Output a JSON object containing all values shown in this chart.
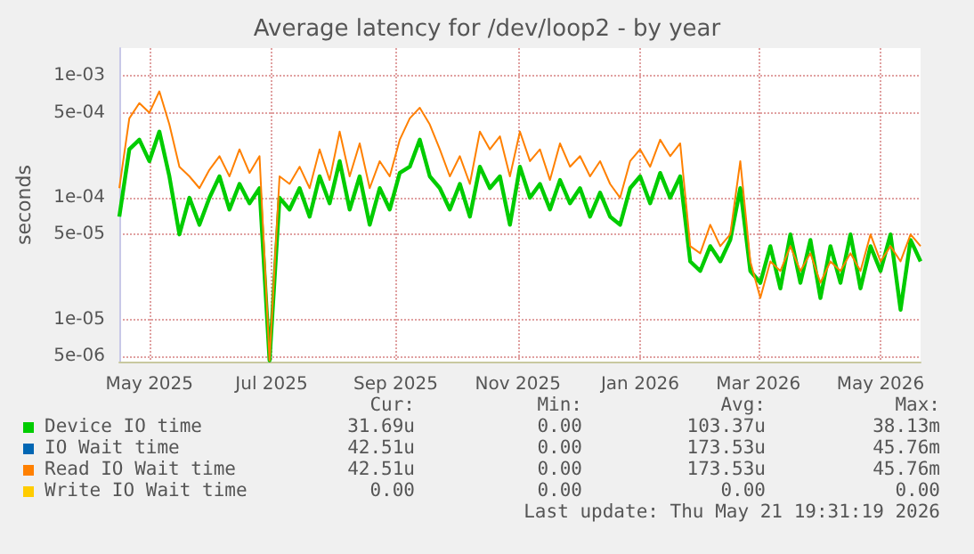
{
  "chart_data": {
    "type": "line",
    "title": "Average latency for /dev/loop2 - by year",
    "ylabel": "seconds",
    "log": "y",
    "grid": true,
    "legend": "bottom",
    "marker": "none",
    "xlim": [
      "2025-04-16",
      "2026-05-21"
    ],
    "xticks": [
      {
        "value": "2025-05-01",
        "label": "May 2025"
      },
      {
        "value": "2025-07-01",
        "label": "Jul 2025"
      },
      {
        "value": "2025-09-01",
        "label": "Sep 2025"
      },
      {
        "value": "2025-11-01",
        "label": "Nov 2025"
      },
      {
        "value": "2026-01-01",
        "label": "Jan 2026"
      },
      {
        "value": "2026-03-01",
        "label": "Mar 2026"
      },
      {
        "value": "2026-05-01",
        "label": "May 2026"
      }
    ],
    "ylim": [
      4.5e-06,
      0.0017
    ],
    "yticks": [
      {
        "value": 5e-06,
        "label": "5e-06"
      },
      {
        "value": 1e-05,
        "label": "1e-05"
      },
      {
        "value": 5e-05,
        "label": "5e-05"
      },
      {
        "value": 0.0001,
        "label": "1e-04"
      },
      {
        "value": 0.0005,
        "label": "5e-04"
      },
      {
        "value": 0.001,
        "label": "1e-03"
      }
    ],
    "x": [
      "2025-04-16",
      "2025-04-21",
      "2025-04-26",
      "2025-05-01",
      "2025-05-06",
      "2025-05-11",
      "2025-05-16",
      "2025-05-21",
      "2025-05-26",
      "2025-05-31",
      "2025-06-05",
      "2025-06-10",
      "2025-06-15",
      "2025-06-20",
      "2025-06-25",
      "2025-06-30",
      "2025-07-05",
      "2025-07-10",
      "2025-07-15",
      "2025-07-20",
      "2025-07-25",
      "2025-07-30",
      "2025-08-04",
      "2025-08-09",
      "2025-08-14",
      "2025-08-19",
      "2025-08-24",
      "2025-08-29",
      "2025-09-03",
      "2025-09-08",
      "2025-09-13",
      "2025-09-18",
      "2025-09-23",
      "2025-09-28",
      "2025-10-03",
      "2025-10-08",
      "2025-10-13",
      "2025-10-18",
      "2025-10-23",
      "2025-10-28",
      "2025-11-02",
      "2025-11-07",
      "2025-11-12",
      "2025-11-17",
      "2025-11-22",
      "2025-11-27",
      "2025-12-02",
      "2025-12-07",
      "2025-12-12",
      "2025-12-17",
      "2025-12-22",
      "2025-12-27",
      "2026-01-01",
      "2026-01-06",
      "2026-01-11",
      "2026-01-16",
      "2026-01-21",
      "2026-01-26",
      "2026-01-31",
      "2026-02-05",
      "2026-02-10",
      "2026-02-15",
      "2026-02-20",
      "2026-02-25",
      "2026-03-02",
      "2026-03-07",
      "2026-03-12",
      "2026-03-17",
      "2026-03-22",
      "2026-03-27",
      "2026-04-01",
      "2026-04-06",
      "2026-04-11",
      "2026-04-16",
      "2026-04-21",
      "2026-04-26",
      "2026-05-01",
      "2026-05-06",
      "2026-05-11",
      "2026-05-16",
      "2026-05-21"
    ],
    "series": [
      {
        "name": "Device IO time",
        "color": "#00cc00",
        "values": [
          7e-05,
          0.00025,
          0.0003,
          0.0002,
          0.00035,
          0.00015,
          5e-05,
          0.0001,
          6e-05,
          0.0001,
          0.00015,
          8e-05,
          0.00013,
          9e-05,
          0.00012,
          4.6e-06,
          0.0001,
          8e-05,
          0.00012,
          7e-05,
          0.00015,
          9e-05,
          0.0002,
          8e-05,
          0.00015,
          6e-05,
          0.00012,
          8e-05,
          0.00016,
          0.00018,
          0.0003,
          0.00015,
          0.00012,
          8e-05,
          0.00013,
          7e-05,
          0.00018,
          0.00012,
          0.00015,
          6e-05,
          0.00018,
          0.0001,
          0.00013,
          8e-05,
          0.00014,
          9e-05,
          0.00012,
          7e-05,
          0.00011,
          7e-05,
          6e-05,
          0.00012,
          0.00015,
          9e-05,
          0.00016,
          0.0001,
          0.00015,
          3e-05,
          2.5e-05,
          4e-05,
          3e-05,
          4.5e-05,
          0.00012,
          2.5e-05,
          2e-05,
          4e-05,
          1.8e-05,
          5e-05,
          2e-05,
          4.5e-05,
          1.5e-05,
          4e-05,
          2e-05,
          5e-05,
          1.8e-05,
          4e-05,
          2.5e-05,
          5e-05,
          1.2e-05,
          4.5e-05,
          3e-05
        ]
      },
      {
        "name": "IO Wait time",
        "color": "#0066b3",
        "values": [
          null,
          null,
          null,
          null,
          null,
          null,
          null,
          null,
          null,
          null,
          null,
          null,
          null,
          null,
          null,
          null,
          null,
          null,
          null,
          null,
          null,
          null,
          null,
          null,
          null,
          null,
          null,
          null,
          null,
          null,
          null,
          null,
          null,
          null,
          null,
          null,
          null,
          null,
          null,
          null,
          null,
          null,
          null,
          null,
          null,
          null,
          null,
          null,
          null,
          null,
          null,
          null,
          null,
          null,
          null,
          null,
          null,
          null,
          null,
          null,
          null,
          null,
          null,
          null,
          null,
          null,
          null,
          null,
          null,
          null,
          null,
          null,
          null,
          null,
          null,
          null,
          null,
          null,
          null,
          null,
          null
        ]
      },
      {
        "name": "Read IO Wait time",
        "color": "#ff8000",
        "values": [
          0.00012,
          0.00045,
          0.0006,
          0.0005,
          0.00075,
          0.0004,
          0.00018,
          0.00015,
          0.00012,
          0.00017,
          0.00022,
          0.00015,
          0.00025,
          0.00016,
          0.00022,
          4.6e-06,
          0.00015,
          0.00013,
          0.00018,
          0.00012,
          0.00025,
          0.00014,
          0.00035,
          0.00015,
          0.00028,
          0.00012,
          0.0002,
          0.00015,
          0.0003,
          0.00045,
          0.00055,
          0.0004,
          0.00025,
          0.00015,
          0.00022,
          0.00013,
          0.00035,
          0.00025,
          0.00032,
          0.00015,
          0.00035,
          0.0002,
          0.00025,
          0.00014,
          0.00028,
          0.00018,
          0.00022,
          0.00015,
          0.0002,
          0.00013,
          0.0001,
          0.0002,
          0.00025,
          0.00018,
          0.0003,
          0.00022,
          0.00028,
          4e-05,
          3.5e-05,
          6e-05,
          4e-05,
          5e-05,
          0.0002,
          3e-05,
          1.5e-05,
          3e-05,
          2.5e-05,
          4e-05,
          2.5e-05,
          3.5e-05,
          2e-05,
          3e-05,
          2.5e-05,
          3.5e-05,
          2.5e-05,
          5e-05,
          3e-05,
          4e-05,
          3e-05,
          5e-05,
          4e-05
        ]
      },
      {
        "name": "Write IO Wait time",
        "color": "#ffcc00",
        "values": [
          null,
          null,
          null,
          null,
          null,
          null,
          null,
          null,
          null,
          null,
          null,
          null,
          null,
          null,
          null,
          null,
          null,
          null,
          null,
          null,
          null,
          null,
          null,
          null,
          null,
          null,
          null,
          null,
          null,
          null,
          null,
          null,
          null,
          null,
          null,
          null,
          null,
          null,
          null,
          null,
          null,
          null,
          null,
          null,
          null,
          null,
          null,
          null,
          null,
          null,
          null,
          null,
          null,
          null,
          null,
          null,
          null,
          null,
          null,
          null,
          null,
          null,
          null,
          null,
          null,
          null,
          null,
          null,
          null,
          null,
          null,
          null,
          null,
          null,
          null,
          null,
          null,
          null,
          null,
          null,
          null
        ]
      }
    ],
    "annotations": [
      "Cur:",
      "Min:",
      "Avg:",
      "Max:",
      "31.69u",
      "0.00",
      "103.37u",
      "38.13m",
      "42.51u",
      "0.00",
      "173.53u",
      "45.76m",
      "42.51u",
      "0.00",
      "173.53u",
      "45.76m",
      "0.00",
      "0.00",
      "0.00",
      "0.00",
      "Last update: Thu May 21 19:31:19 2026"
    ]
  }
}
